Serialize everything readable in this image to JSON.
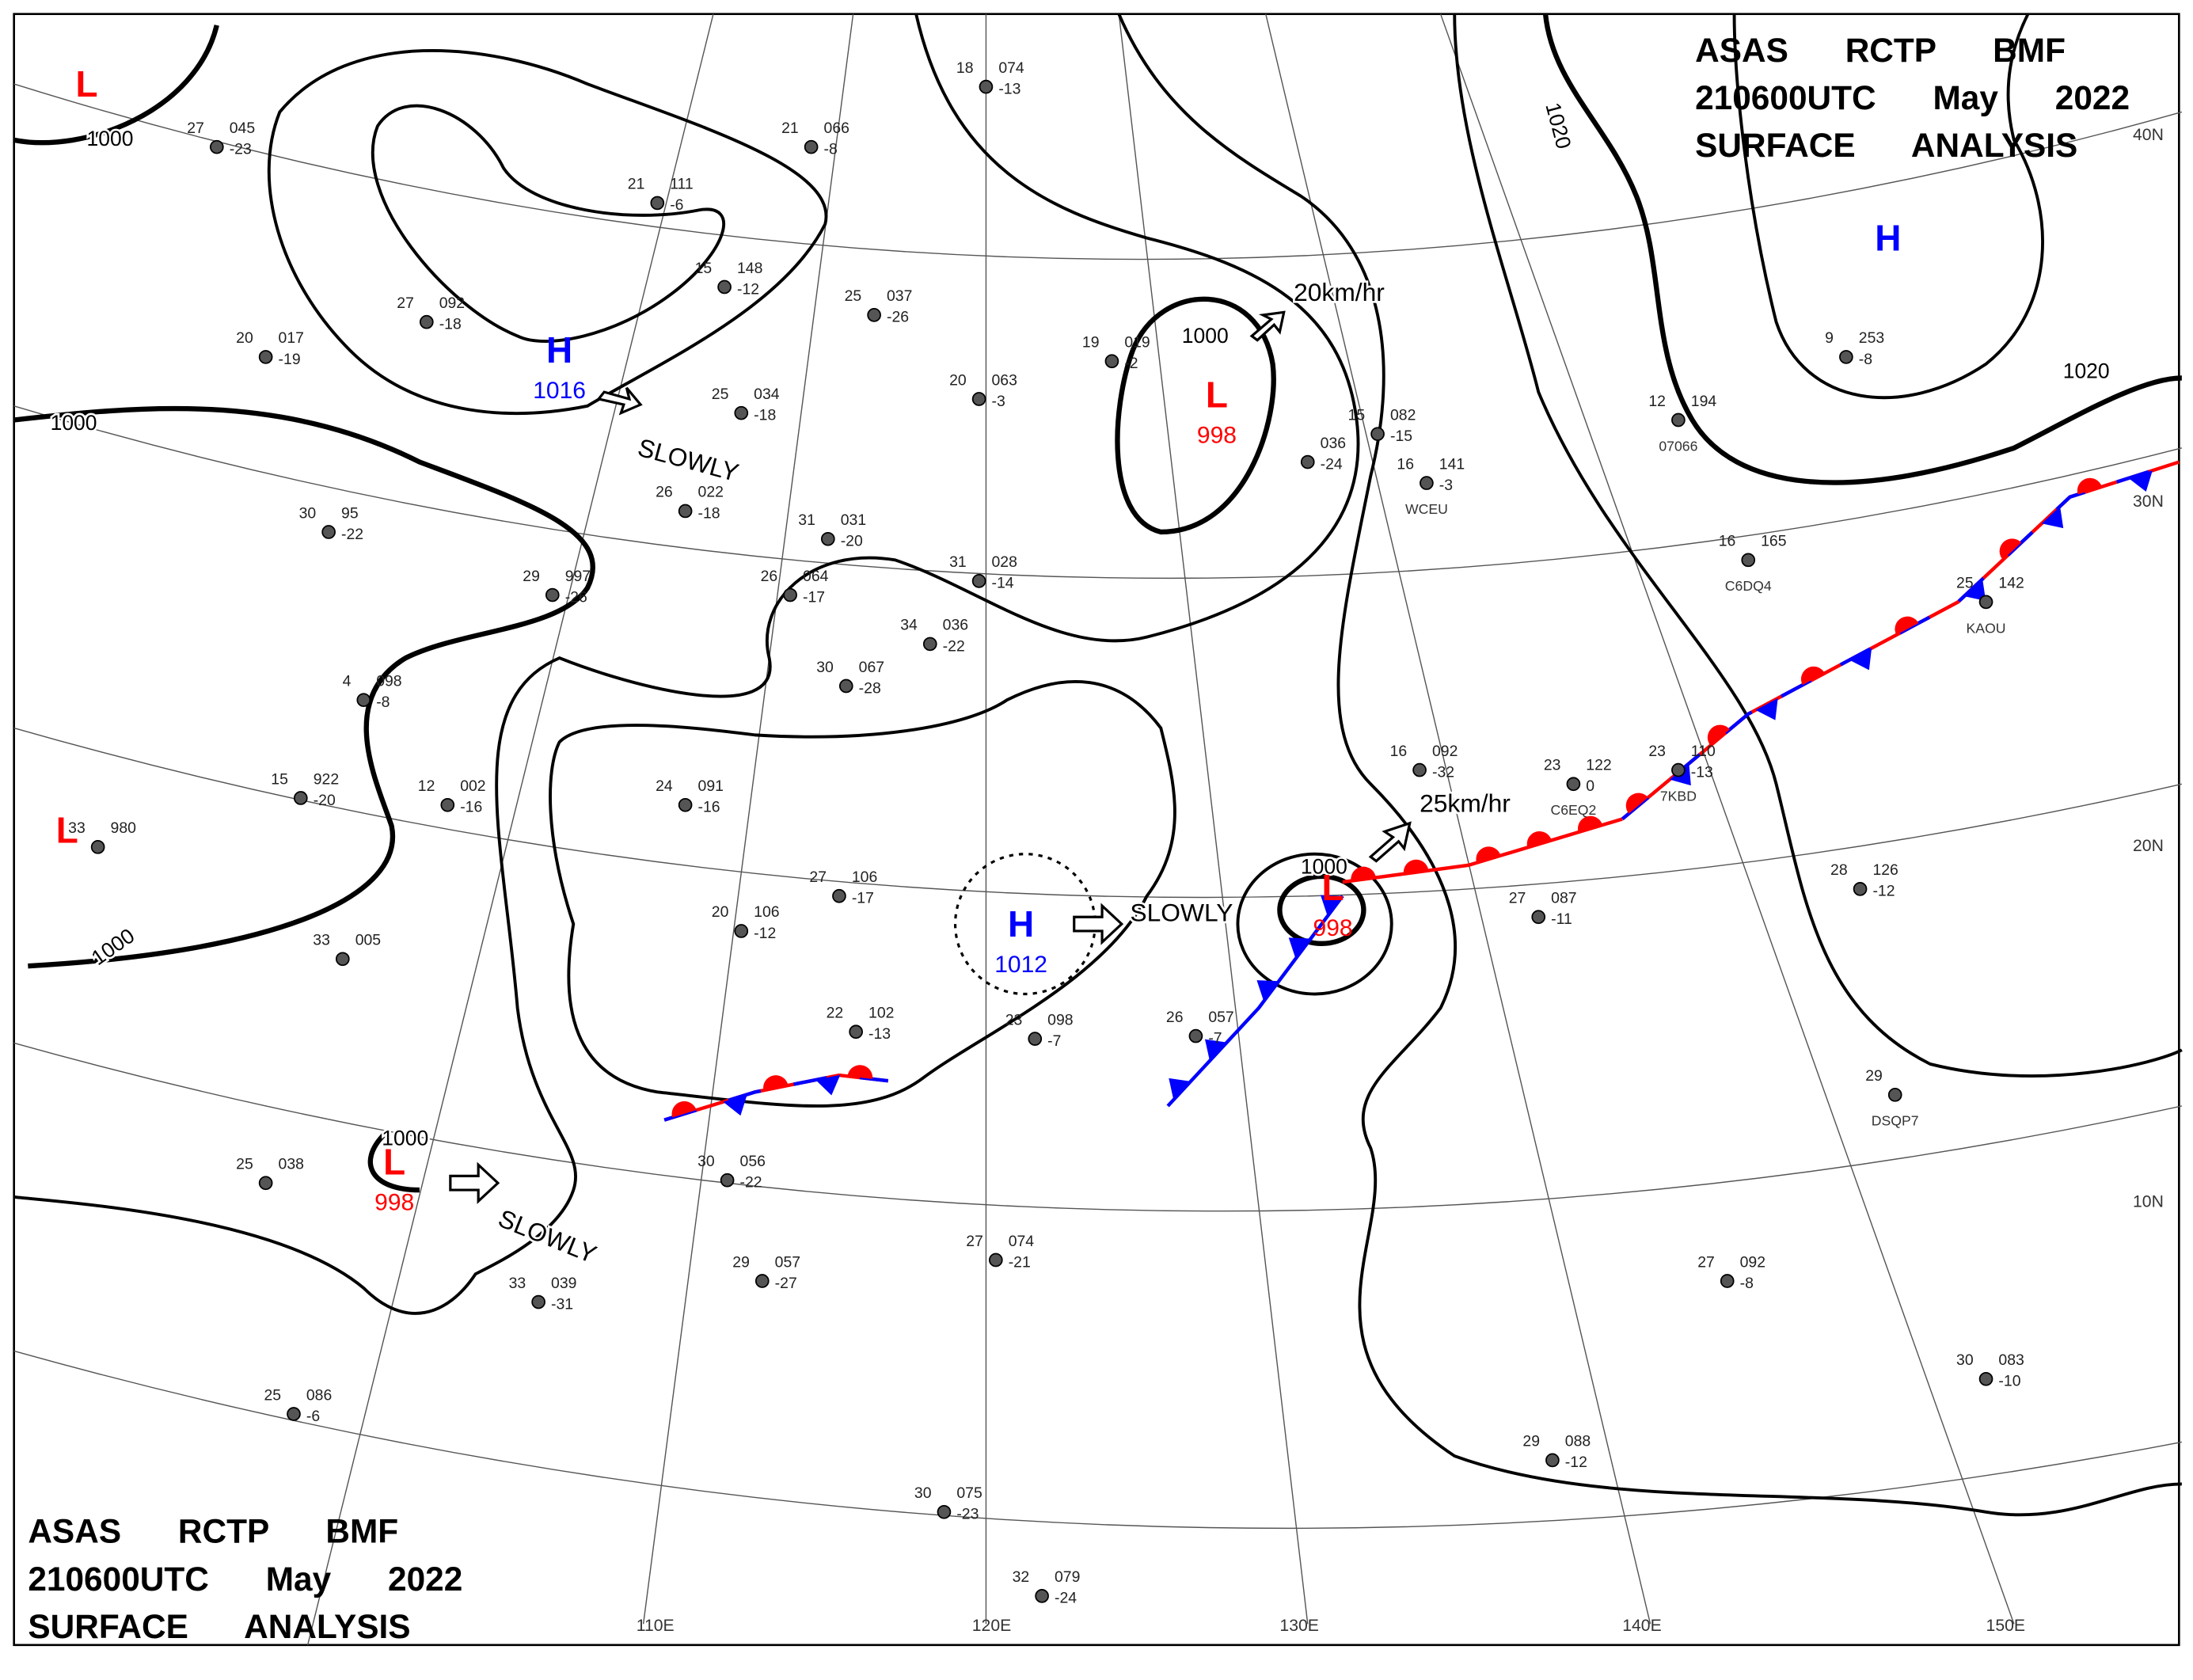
{
  "header": {
    "lines": [
      "ASAS RCTP BMF",
      "210600UTC May 2022",
      "SURFACE ANALYSIS"
    ]
  },
  "centers": [
    {
      "type": "L"
    },
    {
      "type": "H",
      "value": 1016
    },
    {
      "type": "L",
      "value": 998
    },
    {
      "type": "H"
    },
    {
      "type": "L"
    },
    {
      "type": "H",
      "value": 1012
    },
    {
      "type": "L",
      "value": 998
    },
    {
      "type": "L",
      "value": 998
    }
  ],
  "isobar_labels": [
    1000,
    1000,
    1000,
    1000,
    1000,
    1000,
    1020,
    1020
  ],
  "motions": [
    "SLOWLY",
    "20km/hr",
    "SLOWLY",
    "25km/hr",
    "SLOWLY"
  ],
  "longitude_labels": [
    "110E",
    "120E",
    "130E",
    "140E",
    "150E"
  ],
  "latitude_labels": [
    "40N",
    "30N",
    "20N",
    "10N"
  ],
  "stations": [
    {
      "temp": 27,
      "pressure": "045",
      "dew": -23
    },
    {
      "temp": 21,
      "pressure": "111",
      "dew": -6
    },
    {
      "temp": 15,
      "pressure": "148",
      "dew": -12
    },
    {
      "temp": 21,
      "pressure": "066",
      "dew": -8
    },
    {
      "temp": 27,
      "pressure": "092",
      "dew": -18
    },
    {
      "temp": 20,
      "pressure": "017",
      "dew": -19
    },
    {
      "temp": 25,
      "pressure": "034",
      "dew": -18
    },
    {
      "temp": 25,
      "pressure": "037",
      "dew": -26
    },
    {
      "temp": 20,
      "pressure": "063",
      "dew": -3
    },
    {
      "temp": 19,
      "pressure": "019",
      "dew": -2
    },
    {
      "temp": 18,
      "pressure": "074",
      "dew": -13
    },
    {
      "temp": 26,
      "pressure": "022",
      "dew": -18
    },
    {
      "temp": 30,
      "pressure": "95",
      "dew": -22
    },
    {
      "temp": 29,
      "pressure": "997",
      "dew": -26
    },
    {
      "temp": 31,
      "pressure": "031",
      "dew": -20
    },
    {
      "temp": 31,
      "pressure": "028",
      "dew": -14
    },
    {
      "temp": 26,
      "pressure": "064",
      "dew": -17
    },
    {
      "temp": 34,
      "pressure": "036",
      "dew": -22
    },
    {
      "temp": 30,
      "pressure": "067",
      "dew": -28
    },
    {
      "temp": 4,
      "pressure": "098",
      "dew": -8
    },
    {
      "temp": 24,
      "pressure": "091",
      "dew": -16
    },
    {
      "temp": 12,
      "pressure": "002",
      "dew": -16
    },
    {
      "temp": 15,
      "pressure": "922",
      "dew": -20
    },
    {
      "temp": 33,
      "pressure": "980"
    },
    {
      "temp": 27,
      "pressure": "106",
      "dew": -17
    },
    {
      "temp": 20,
      "pressure": "106",
      "dew": -12
    },
    {
      "temp": 33,
      "pressure": "005"
    },
    {
      "temp": 22,
      "pressure": "102",
      "dew": -13
    },
    {
      "temp": 23,
      "pressure": "098",
      "dew": -7
    },
    {
      "temp": 25,
      "pressure": "038"
    },
    {
      "temp": 30,
      "pressure": "056",
      "dew": -22
    },
    {
      "temp": 29,
      "pressure": "057",
      "dew": -27
    },
    {
      "temp": 33,
      "pressure": "039",
      "dew": -31
    },
    {
      "temp": 25,
      "pressure": "086",
      "dew": -6
    },
    {
      "temp": 27,
      "pressure": "074",
      "dew": -21
    },
    {
      "temp": 30,
      "pressure": "075",
      "dew": -23
    },
    {
      "temp": 32,
      "pressure": "079",
      "dew": -24
    },
    {
      "temp": 27,
      "pressure": "087",
      "dew": -11
    },
    {
      "temp": 28,
      "pressure": "126",
      "dew": -12
    },
    {
      "temp": 27,
      "pressure": "092",
      "dew": -8
    },
    {
      "temp": 30,
      "pressure": "083",
      "dew": -10
    },
    {
      "temp": 29,
      "pressure": "088",
      "dew": -12
    },
    {
      "temp": 29,
      "id": "DSQP7"
    },
    {
      "temp": 16,
      "pressure": "165",
      "id": "C6DQ4"
    },
    {
      "temp": 25,
      "pressure": "142",
      "id": "KAOU"
    },
    {
      "temp": 9,
      "pressure": "253",
      "dew": -8
    },
    {
      "temp": 12,
      "pressure": "194",
      "id": "07066"
    },
    {
      "temp": 16,
      "pressure": "141",
      "dew": -3,
      "id": "WCEU"
    },
    {
      "temp": 15,
      "pressure": "082",
      "dew": -15
    },
    {
      "pressure": "036",
      "dew": -24
    },
    {
      "temp": 16,
      "pressure": "092",
      "dew": -32
    },
    {
      "temp": 23,
      "pressure": "122",
      "dew": 0,
      "id": "C6EQ2"
    },
    {
      "temp": 23,
      "pressure": "110",
      "dew": -13,
      "id": "7KBD"
    },
    {
      "temp": 26,
      "pressure": "057",
      "dew": -7
    }
  ]
}
